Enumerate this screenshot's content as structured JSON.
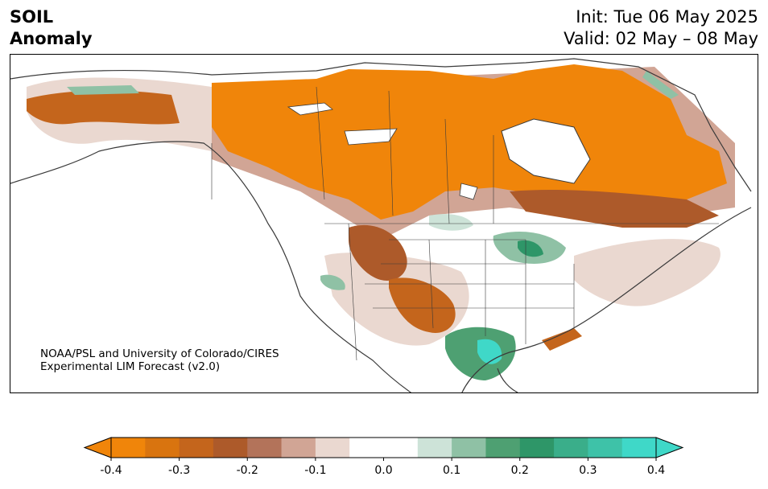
{
  "header": {
    "title_line1": "SOIL",
    "title_line2": "Anomaly",
    "init_text": "Init: Tue 06 May 2025",
    "valid_text": "Valid: 02 May – 08 May"
  },
  "credit": {
    "line1": "NOAA/PSL and University of Colorado/CIRES",
    "line2": "Experimental LIM Forecast (v2.0)"
  },
  "colorbar": {
    "ticks": [
      "-0.4",
      "-0.3",
      "-0.2",
      "-0.1",
      "0.0",
      "0.1",
      "0.2",
      "0.3",
      "0.4"
    ],
    "colors": [
      "#f0850a",
      "#d9740f",
      "#c4651c",
      "#ad5a2a",
      "#b3735a",
      "#d1a595",
      "#ead8d0",
      "#ffffff",
      "#ffffff",
      "#cde3d8",
      "#8fc1a5",
      "#4ea072",
      "#2e9668",
      "#3aae8a",
      "#3ec2a8",
      "#3fd8c8"
    ],
    "under_color": "#f0850a",
    "over_color": "#3fd8c8"
  },
  "colors": {
    "dry_strong": "#f0850a",
    "dry_mid": "#c4651c",
    "dry_brown": "#ad5a2a",
    "dry_light": "#d1a595",
    "dry_faint": "#ead8d0",
    "wet_faint": "#cde3d8",
    "wet_mid": "#4ea072",
    "wet_strong": "#3fd8c8",
    "coast": "#3a3a3a"
  }
}
